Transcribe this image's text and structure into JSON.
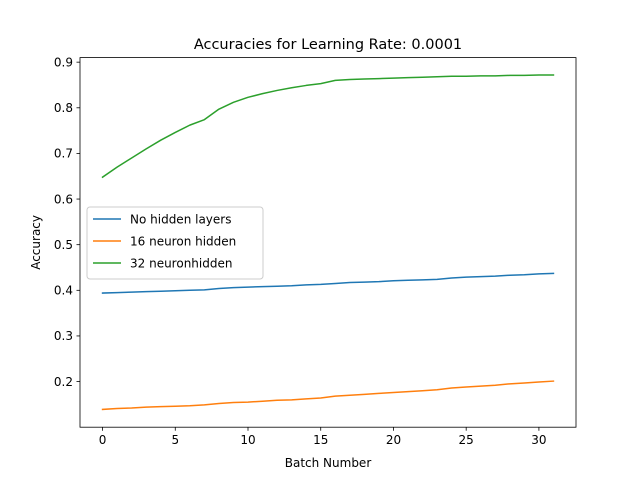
{
  "chart_data": {
    "type": "line",
    "title": "Accuracies for Learning Rate: 0.0001",
    "xlabel": "Batch Number",
    "ylabel": "Accuracy",
    "xlim": [
      -1.55,
      32.55
    ],
    "ylim": [
      0.1,
      0.91
    ],
    "xticks": [
      0,
      5,
      10,
      15,
      20,
      25,
      30
    ],
    "yticks": [
      0.2,
      0.3,
      0.4,
      0.5,
      0.6,
      0.7,
      0.8,
      0.9
    ],
    "xtick_labels": [
      "0",
      "5",
      "10",
      "15",
      "20",
      "25",
      "30"
    ],
    "ytick_labels": [
      "0.2",
      "0.3",
      "0.4",
      "0.5",
      "0.6",
      "0.7",
      "0.8",
      "0.9"
    ],
    "grid": false,
    "legend_position": "center-left",
    "x": [
      0,
      1,
      2,
      3,
      4,
      5,
      6,
      7,
      8,
      9,
      10,
      11,
      12,
      13,
      14,
      15,
      16,
      17,
      18,
      19,
      20,
      21,
      22,
      23,
      24,
      25,
      26,
      27,
      28,
      29,
      30,
      31
    ],
    "series": [
      {
        "name": "No hidden layers",
        "color": "#1f77b4",
        "values": [
          0.394,
          0.395,
          0.396,
          0.397,
          0.398,
          0.399,
          0.4,
          0.401,
          0.404,
          0.406,
          0.407,
          0.408,
          0.409,
          0.41,
          0.412,
          0.413,
          0.415,
          0.417,
          0.418,
          0.419,
          0.421,
          0.422,
          0.423,
          0.424,
          0.427,
          0.429,
          0.43,
          0.431,
          0.433,
          0.434,
          0.436,
          0.437
        ]
      },
      {
        "name": "16 neuron hidden",
        "color": "#ff7f0e",
        "values": [
          0.139,
          0.141,
          0.142,
          0.144,
          0.145,
          0.146,
          0.147,
          0.149,
          0.152,
          0.154,
          0.155,
          0.157,
          0.159,
          0.16,
          0.162,
          0.164,
          0.168,
          0.17,
          0.172,
          0.174,
          0.176,
          0.178,
          0.18,
          0.182,
          0.186,
          0.188,
          0.19,
          0.192,
          0.195,
          0.197,
          0.199,
          0.201
        ]
      },
      {
        "name": "32 neuronhidden",
        "color": "#2ca02c",
        "values": [
          0.648,
          0.67,
          0.69,
          0.71,
          0.729,
          0.746,
          0.762,
          0.774,
          0.797,
          0.812,
          0.823,
          0.831,
          0.838,
          0.844,
          0.849,
          0.853,
          0.86,
          0.862,
          0.863,
          0.864,
          0.865,
          0.866,
          0.867,
          0.868,
          0.869,
          0.869,
          0.87,
          0.87,
          0.871,
          0.871,
          0.872,
          0.872
        ]
      }
    ]
  }
}
